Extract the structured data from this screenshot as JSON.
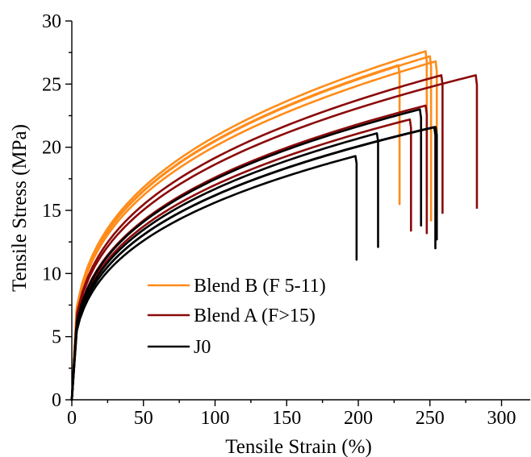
{
  "chart_data": {
    "type": "line",
    "title": "",
    "xlabel": "Tensile Strain (%)",
    "ylabel": "Tensile Stress (MPa)",
    "xlim": [
      0,
      320
    ],
    "ylim": [
      0,
      30
    ],
    "xticks": [
      0,
      50,
      100,
      150,
      200,
      250,
      300
    ],
    "yticks": [
      0,
      5,
      10,
      15,
      20,
      25,
      30
    ],
    "grid": false,
    "legend_position": "center-left",
    "legend": [
      {
        "label": "Blend B (F 5-11)",
        "color": "#ff8c1a"
      },
      {
        "label": "Blend A (F>15)",
        "color": "#8b0a0a"
      },
      {
        "label": "J0",
        "color": "#000000"
      }
    ],
    "series": [
      {
        "group": "Blend B (F 5-11)",
        "color": "#ff8c1a",
        "break_strain": 228,
        "max_stress": 26.5,
        "final_stress": 15.5
      },
      {
        "group": "Blend B (F 5-11)",
        "color": "#ff8c1a",
        "break_strain": 247,
        "max_stress": 27.6,
        "final_stress": 16.2
      },
      {
        "group": "Blend B (F 5-11)",
        "color": "#ff8c1a",
        "break_strain": 250,
        "max_stress": 27.2,
        "final_stress": 14.2
      },
      {
        "group": "Blend B (F 5-11)",
        "color": "#ff8c1a",
        "break_strain": 254,
        "max_stress": 26.8,
        "final_stress": 15.1
      },
      {
        "group": "Blend A (F>15)",
        "color": "#8b0a0a",
        "break_strain": 236,
        "max_stress": 22.2,
        "final_stress": 13.4
      },
      {
        "group": "Blend A (F>15)",
        "color": "#8b0a0a",
        "break_strain": 247,
        "max_stress": 23.3,
        "final_stress": 13.2
      },
      {
        "group": "Blend A (F>15)",
        "color": "#8b0a0a",
        "break_strain": 258,
        "max_stress": 25.7,
        "final_stress": 14.8
      },
      {
        "group": "Blend A (F>15)",
        "color": "#8b0a0a",
        "break_strain": 282,
        "max_stress": 25.7,
        "final_stress": 15.2
      },
      {
        "group": "J0",
        "color": "#000000",
        "break_strain": 198,
        "max_stress": 19.3,
        "final_stress": 11.1
      },
      {
        "group": "J0",
        "color": "#000000",
        "break_strain": 213,
        "max_stress": 21.1,
        "final_stress": 12.1
      },
      {
        "group": "J0",
        "color": "#000000",
        "break_strain": 243,
        "max_stress": 23.0,
        "final_stress": 13.8
      },
      {
        "group": "J0",
        "color": "#000000",
        "break_strain": 253,
        "max_stress": 21.6,
        "final_stress": 12.0
      },
      {
        "group": "J0",
        "color": "#000000",
        "break_strain": 254,
        "max_stress": 21.6,
        "final_stress": 12.7
      }
    ]
  }
}
